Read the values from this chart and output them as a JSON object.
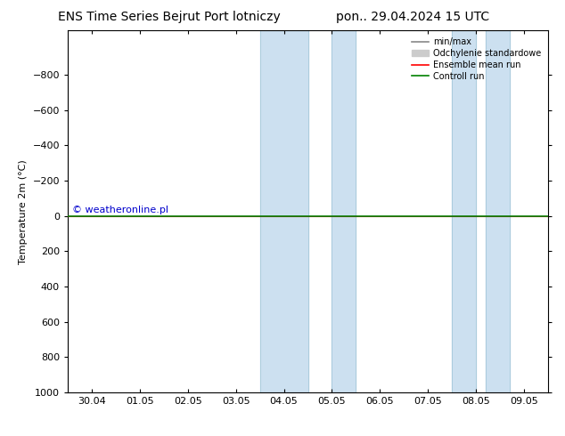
{
  "title_left": "ENS Time Series Bejrut Port lotniczy",
  "title_right": "pon.. 29.04.2024 15 UTC",
  "ylabel": "Temperature 2m (°C)",
  "ylim_bottom": 1000,
  "ylim_top": -1050,
  "yticks": [
    -800,
    -600,
    -400,
    -200,
    0,
    200,
    400,
    600,
    800,
    1000
  ],
  "xlim": [
    -0.5,
    9.5
  ],
  "xtick_labels": [
    "30.04",
    "01.05",
    "02.05",
    "03.05",
    "04.05",
    "05.05",
    "06.05",
    "07.05",
    "08.05",
    "09.05"
  ],
  "xtick_positions": [
    0,
    1,
    2,
    3,
    4,
    5,
    6,
    7,
    8,
    9
  ],
  "blue_shade_regions": [
    [
      3.5,
      4.5
    ],
    [
      5.0,
      5.5
    ],
    [
      7.5,
      8.0
    ],
    [
      8.2,
      8.7
    ]
  ],
  "control_run_y": 0,
  "bg_color": "#ffffff",
  "plot_bg_color": "#ffffff",
  "blue_shade_color": "#cce0f0",
  "control_run_color": "#008000",
  "ensemble_mean_color": "#ff0000",
  "minmax_color": "#888888",
  "std_color": "#cccccc",
  "watermark": "© weatheronline.pl",
  "watermark_color": "#0000cc",
  "legend_labels": [
    "min/max",
    "Odchylenie standardowe",
    "Ensemble mean run",
    "Controll run"
  ],
  "legend_colors": [
    "#888888",
    "#cccccc",
    "#ff0000",
    "#008000"
  ],
  "title_fontsize": 10,
  "axis_fontsize": 8,
  "tick_fontsize": 8
}
